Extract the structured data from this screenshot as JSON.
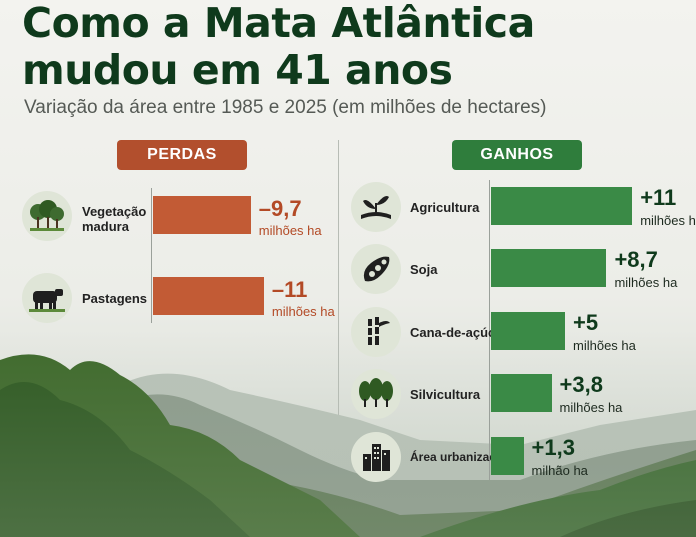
{
  "title_line1": "Como a Mata Atlântica",
  "title_line2": "mudou em 41 anos",
  "subtitle": "Variação da área entre 1985 e 2025 (em milhões de hectares)",
  "colors": {
    "loss": "#c25b35",
    "gain": "#3a8a46",
    "title": "#0f3a1c"
  },
  "chart_data": {
    "type": "bar",
    "title": "Como a Mata Atlântica mudou em 41 anos",
    "subtitle": "Variação da área entre 1985 e 2025 (em milhões de hectares)",
    "units": "milhões de hectares",
    "groups": [
      {
        "name": "PERDAS",
        "items": [
          {
            "category": "Vegetação madura",
            "icon": "trees-icon",
            "value": -9.7,
            "label": "–9,7",
            "unit_label": "milhões ha"
          },
          {
            "category": "Pastagens",
            "icon": "cow-icon",
            "value": -11,
            "label": "–11",
            "unit_label": "milhões ha"
          }
        ]
      },
      {
        "name": "GANHOS",
        "items": [
          {
            "category": "Agricultura",
            "icon": "sprout-icon",
            "value": 11,
            "label": "+11",
            "unit_label": "milhões ha"
          },
          {
            "category": "Soja",
            "icon": "soybean-icon",
            "value": 8.7,
            "label": "+8,7",
            "unit_label": "milhões ha"
          },
          {
            "category": "Cana-de-açúcar",
            "icon": "sugarcane-icon",
            "value": 5,
            "label": "+5",
            "unit_label": "milhões ha"
          },
          {
            "category": "Silvicultura",
            "icon": "forest-icon",
            "value": 3.8,
            "label": "+3,8",
            "unit_label": "milhões ha"
          },
          {
            "category": "Área urbanizada",
            "icon": "buildings-icon",
            "value": 1.3,
            "label": "+1,3",
            "unit_label": "milhão ha"
          }
        ]
      }
    ]
  }
}
